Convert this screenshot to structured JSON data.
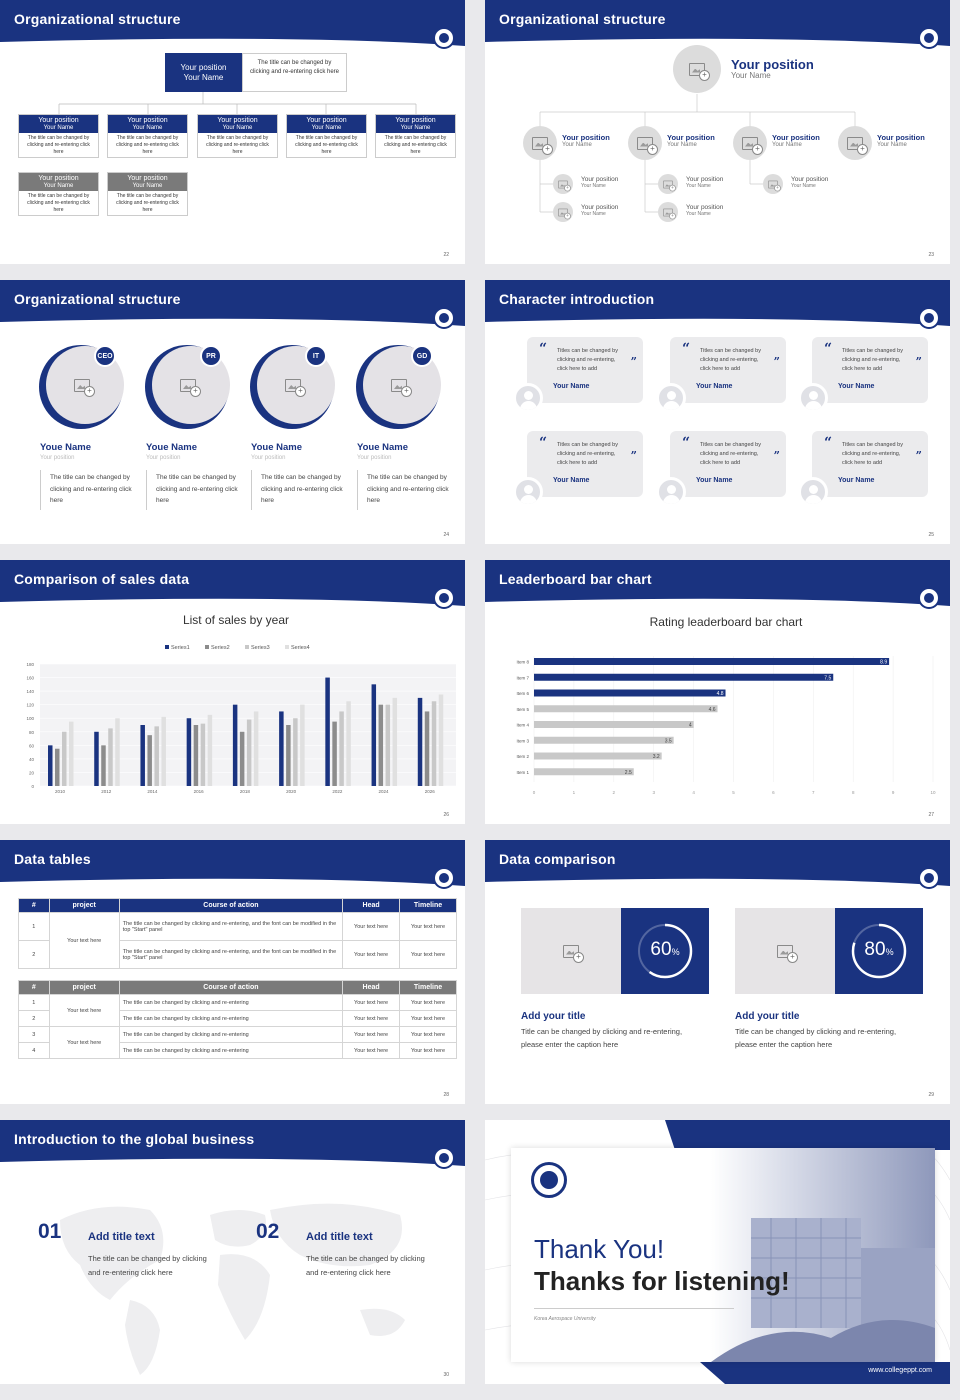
{
  "slides": {
    "s22": {
      "title": "Organizational structure",
      "page": "22",
      "top": {
        "label": "Your position",
        "name": "Your Name",
        "note": "The title can be changed by clicking and re-entering click here"
      },
      "boxes_blue": [
        {
          "label": "Your position",
          "name": "Your Name",
          "text": "The title can be changed by clicking and re-entering click here"
        },
        {
          "label": "Your position",
          "name": "Your Name",
          "text": "The title can be changed by clicking and re-entering click here"
        },
        {
          "label": "Your position",
          "name": "Your Name",
          "text": "The title can be changed by clicking and re-entering click here"
        },
        {
          "label": "Your position",
          "name": "Your Name",
          "text": "The title can be changed by clicking and re-entering click here"
        },
        {
          "label": "Your position",
          "name": "Your Name",
          "text": "The title can be changed by clicking and re-entering click here"
        }
      ],
      "boxes_gray": [
        {
          "label": "Your position",
          "name": "Your Name",
          "text": "The title can be changed by clicking and re-entering click here"
        },
        {
          "label": "Your position",
          "name": "Your Name",
          "text": "The title can be changed by clicking and re-entering click here"
        }
      ]
    },
    "s23": {
      "title": "Organizational structure",
      "page": "23",
      "top": {
        "label": "Your position",
        "name": "Your Name"
      },
      "row": [
        {
          "label": "Your position",
          "name": "Your Name"
        },
        {
          "label": "Your position",
          "name": "Your Name"
        },
        {
          "label": "Your position",
          "name": "Your Name"
        },
        {
          "label": "Your position",
          "name": "Your Name"
        }
      ],
      "subs": [
        {
          "label": "Your position",
          "name": "Your Name"
        },
        {
          "label": "Your position",
          "name": "Your Name"
        },
        {
          "label": "Your position",
          "name": "Your Name"
        },
        {
          "label": "Your position",
          "name": "Your Name"
        },
        {
          "label": "Your position",
          "name": "Your Name"
        }
      ]
    },
    "s24": {
      "title": "Organizational structure",
      "page": "24",
      "people": [
        {
          "badge": "CEO",
          "name": "Youe Name",
          "pos": "Your position",
          "text": "The title can be changed by clicking and re-entering click here"
        },
        {
          "badge": "PR",
          "name": "Youe Name",
          "pos": "Your position",
          "text": "The title can be changed by clicking and re-entering click here"
        },
        {
          "badge": "IT",
          "name": "Youe Name",
          "pos": "Your position",
          "text": "The title can be changed by clicking and re-entering click here"
        },
        {
          "badge": "GD",
          "name": "Youe Name",
          "pos": "Your position",
          "text": "The title can be changed by clicking and re-entering click here"
        }
      ]
    },
    "s25": {
      "title": "Character introduction",
      "page": "25",
      "cards": [
        {
          "text": "Titles can be changed by clicking and re-entering, click here to add",
          "name": "Your Name"
        },
        {
          "text": "Titles can be changed by clicking and re-entering, click here to add",
          "name": "Your Name"
        },
        {
          "text": "Titles can be changed by clicking and re-entering, click here to add",
          "name": "Your Name"
        },
        {
          "text": "Titles can be changed by clicking and re-entering, click here to add",
          "name": "Your Name"
        },
        {
          "text": "Titles can be changed by clicking and re-entering, click here to add",
          "name": "Your Name"
        },
        {
          "text": "Titles can be changed by clicking and re-entering, click here to add",
          "name": "Your Name"
        }
      ]
    },
    "s26": {
      "title": "Comparison of sales data",
      "page": "26"
    },
    "s27": {
      "title": "Leaderboard bar chart",
      "page": "27"
    },
    "s28": {
      "title": "Data tables",
      "page": "28",
      "t1_headers": [
        "#",
        "project",
        "Course of action",
        "Head",
        "Timeline"
      ],
      "t1_rows": [
        {
          "n": "1",
          "course": "The title can be changed by clicking and re-entering, and the font can be modified in the top \"Start\" panel",
          "head": "Your text here",
          "time": "Your text here"
        },
        {
          "n": "2",
          "course": "The title can be changed by clicking and re-entering, and the font can be modified in the top \"Start\" panel",
          "head": "Your text here",
          "time": "Your text here"
        }
      ],
      "t1_project": "Your text here",
      "t2_headers": [
        "#",
        "project",
        "Course of action",
        "Head",
        "Timeline"
      ],
      "t2_rows": [
        {
          "n": "1",
          "course": "The title can be changed by clicking and re-entering",
          "head": "Your text here",
          "time": "Your text here"
        },
        {
          "n": "2",
          "course": "The title can be changed by clicking and re-entering",
          "head": "Your text here",
          "time": "Your text here"
        },
        {
          "n": "3",
          "course": "The title can be changed by clicking and re-entering",
          "head": "Your text here",
          "time": "Your text here"
        },
        {
          "n": "4",
          "course": "The title can be changed by clicking and re-entering",
          "head": "Your text here",
          "time": "Your text here"
        }
      ],
      "t2_project_a": "Your text here",
      "t2_project_b": "Your text here"
    },
    "s29": {
      "title": "Data comparison",
      "page": "29",
      "items": [
        {
          "pct": "60",
          "unit": "%",
          "value": 0.6,
          "heading": "Add your title",
          "text": "Title can be changed by clicking and re-entering, please enter the caption here"
        },
        {
          "pct": "80",
          "unit": "%",
          "value": 0.8,
          "heading": "Add your title",
          "text": "Title can be changed by clicking and re-entering, please enter the caption here"
        }
      ]
    },
    "s30": {
      "title": "Introduction to the global business",
      "page": "30",
      "items": [
        {
          "num": "01",
          "heading": "Add title text",
          "text": "The title can be changed by clicking and re-entering click here"
        },
        {
          "num": "02",
          "heading": "Add title text",
          "text": "The title can be changed by clicking and re-entering click here"
        }
      ]
    },
    "s31": {
      "line1": "Thank You!",
      "line2": "Thanks for listening!",
      "uni": "Korea Aerospace University",
      "url": "www.collegeppt.com"
    }
  },
  "chart_data": [
    {
      "type": "bar",
      "title": "List of sales by year",
      "categories": [
        "2010",
        "2012",
        "2014",
        "2016",
        "2018",
        "2020",
        "2022",
        "2024",
        "2026"
      ],
      "series": [
        {
          "name": "Series1",
          "color": "#1a3380",
          "values": [
            60,
            80,
            90,
            100,
            120,
            110,
            160,
            150,
            130
          ]
        },
        {
          "name": "Series2",
          "color": "#8c8c8c",
          "values": [
            55,
            60,
            75,
            90,
            80,
            90,
            95,
            120,
            110
          ]
        },
        {
          "name": "Series3",
          "color": "#c8c8c8",
          "values": [
            80,
            85,
            88,
            92,
            98,
            100,
            110,
            120,
            125
          ]
        },
        {
          "name": "Series4",
          "color": "#e0e0e0",
          "values": [
            95,
            100,
            102,
            105,
            110,
            120,
            125,
            130,
            135
          ]
        }
      ],
      "yticks": [
        "180",
        "160",
        "140",
        "120",
        "100",
        "80",
        "60",
        "40",
        "20",
        "0"
      ],
      "ylim": [
        0,
        180
      ]
    },
    {
      "type": "bar",
      "orientation": "horizontal",
      "title": "Rating leaderboard bar chart",
      "categories": [
        "Item 8",
        "Item 7",
        "Item 6",
        "Item 5",
        "Item 4",
        "Item 3",
        "Item 2",
        "Item 1"
      ],
      "values": [
        8.9,
        7.5,
        4.8,
        4.6,
        4,
        3.5,
        3.2,
        2.5
      ],
      "labels": [
        "8.9",
        "7.5",
        "4.8",
        "4.6",
        "4",
        "3.5",
        "3.2",
        "2.5"
      ],
      "highlight_colors": [
        "#1a3380",
        "#1a3380",
        "#1a3380",
        "#c8c8c8",
        "#c8c8c8",
        "#c8c8c8",
        "#c8c8c8",
        "#c8c8c8"
      ],
      "xticks": [
        "0",
        "1",
        "2",
        "3",
        "4",
        "5",
        "6",
        "7",
        "8",
        "9",
        "10"
      ],
      "xlim": [
        0,
        10
      ]
    }
  ]
}
